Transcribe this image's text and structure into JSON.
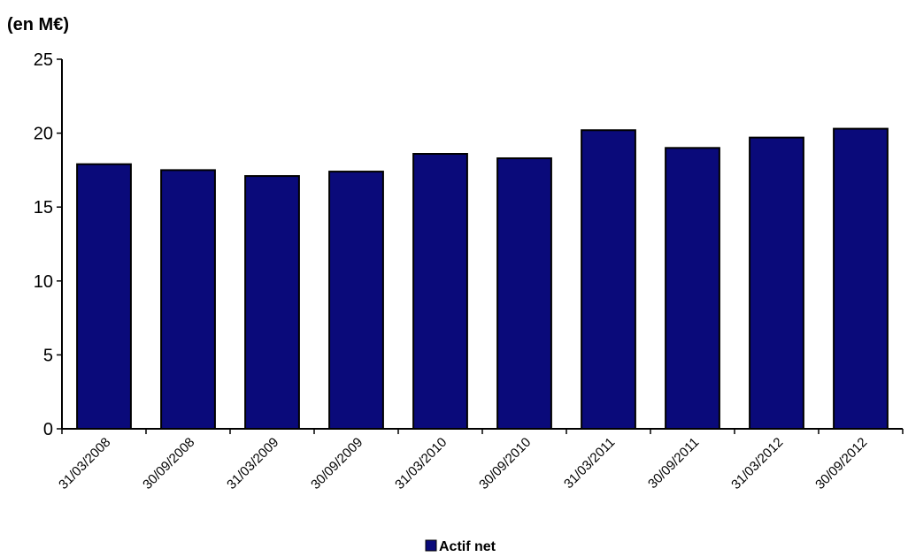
{
  "chart_data": {
    "type": "bar",
    "unit_label": "(en M€)",
    "categories": [
      "31/03/2008",
      "30/09/2008",
      "31/03/2009",
      "30/09/2009",
      "31/03/2010",
      "30/09/2010",
      "31/03/2011",
      "30/09/2011",
      "31/03/2012",
      "30/09/2012"
    ],
    "series": [
      {
        "name": "Actif net",
        "color": "#0a0a7a",
        "values": [
          17.9,
          17.5,
          17.1,
          17.4,
          18.6,
          18.3,
          20.2,
          19.0,
          19.7,
          20.3
        ]
      }
    ],
    "ylim": [
      0,
      25
    ],
    "yticks": [
      0,
      5,
      10,
      15,
      20,
      25
    ],
    "grid": false,
    "legend_position": "bottom-center"
  }
}
